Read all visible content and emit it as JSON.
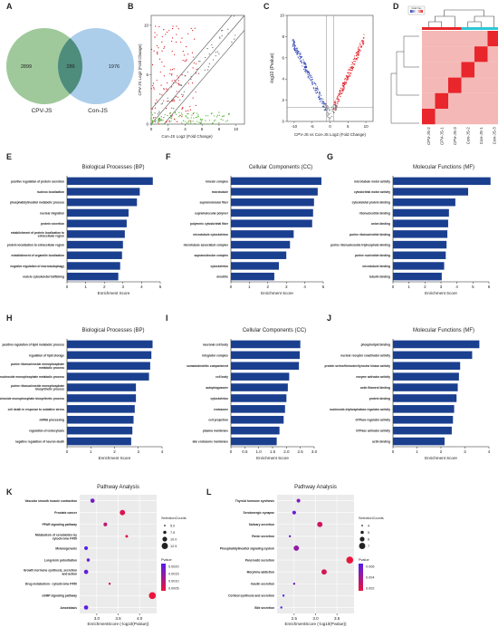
{
  "panel_letters": [
    "A",
    "B",
    "C",
    "D",
    "E",
    "F",
    "G",
    "H",
    "I",
    "J",
    "K",
    "L"
  ],
  "colors": {
    "bar": "#1b3f8f",
    "venn_left": "#8fc08a",
    "venn_right": "#9dc6e8",
    "venn_overlap": "#4e8c7b",
    "up": "#e0141e",
    "down": "#2a3fb0",
    "green_pts": "#4caf2a",
    "heat_red": "#e8262b",
    "heat_pink": "#f4b8b6",
    "group_red": "#e8262b",
    "group_cyan": "#2ec6d6"
  },
  "chart_data": [
    {
      "id": "A",
      "type": "venn",
      "sets": [
        {
          "name": "CPV-JS",
          "only": 2899
        },
        {
          "name": "Con-JS",
          "only": 1976
        }
      ],
      "overlap": 289
    },
    {
      "id": "B",
      "type": "scatter",
      "xlabel": "Con-JS Log2 (Fold Change)",
      "ylabel": "CPV-JS Log2 (Fold Change)",
      "xlim": [
        0,
        11
      ],
      "ylim": [
        0,
        11
      ],
      "xticks": [
        0,
        2,
        4,
        6,
        8,
        10
      ],
      "yticks": [
        0,
        5,
        10
      ]
    },
    {
      "id": "C",
      "type": "scatter",
      "subtype": "volcano",
      "xlabel": "CPV-JS vs Con-JS Log2 (Fold Change)",
      "ylabel": "-log10 (Pvalue)",
      "xlim": [
        -12,
        12
      ],
      "ylim": [
        0,
        10
      ],
      "xticks": [
        -10,
        -5,
        0,
        5,
        10
      ],
      "yticks": [
        0,
        2,
        4,
        6,
        8,
        10
      ]
    },
    {
      "id": "D",
      "type": "heatmap",
      "samples": [
        "CPV-JS-2",
        "CPV-JS-1",
        "CPV-JS-3",
        "Con-JS-2",
        "Con-JS-1",
        "Con-JS-3"
      ],
      "legend_title": "Color Key"
    },
    {
      "id": "E",
      "type": "bar",
      "orientation": "horizontal",
      "title": "Biological Processes (BP)",
      "xlabel": "Enrichment Score",
      "xlim": [
        0,
        5
      ],
      "xticks": [
        0,
        1,
        2,
        3,
        4,
        5
      ],
      "categories": [
        "positive regulation of protein secretion",
        "nucleus localization",
        "phosphatidylinositol metabolic process",
        "nuclear migration",
        "protein secretion",
        "establishment of protein localization to extracellular region",
        "protein localization to extracellular region",
        "establishment of organelle localization",
        "negative regulation of macroautophagy",
        "vesicle cytoskeletal trafficking"
      ],
      "values": [
        4.6,
        3.9,
        3.75,
        3.3,
        3.2,
        3.1,
        3.0,
        2.95,
        2.85,
        2.75
      ]
    },
    {
      "id": "F",
      "type": "bar",
      "orientation": "horizontal",
      "title": "Cellular Components (CC)",
      "xlabel": "Enrichment Score",
      "xlim": [
        0,
        5
      ],
      "xticks": [
        0,
        1,
        2,
        3,
        4,
        5
      ],
      "categories": [
        "kinesin complex",
        "microtubule",
        "supramolecular fiber",
        "supramolecular polymer",
        "polymeric cytoskeletal fiber",
        "microtubule cytoskeleton",
        "microtubule associated complex",
        "supramolecular complex",
        "cytoskeleton",
        "dendrite"
      ],
      "values": [
        4.9,
        4.7,
        4.5,
        4.45,
        4.4,
        3.4,
        3.2,
        3.0,
        2.6,
        2.35
      ]
    },
    {
      "id": "G",
      "type": "bar",
      "orientation": "horizontal",
      "title": "Molecular Functions (MF)",
      "xlabel": "Enrichment Score",
      "xlim": [
        0,
        6
      ],
      "xticks": [
        0,
        1,
        2,
        3,
        4,
        5,
        6
      ],
      "categories": [
        "microtubule motor activity",
        "cytoskeletal motor activity",
        "cytoskeletal protein binding",
        "ribonucleotide binding",
        "anion binding",
        "purine ribonucleotide binding",
        "purine ribonucleoside triphosphate binding",
        "purine nucleotide binding",
        "microtubule binding",
        "tubulin binding"
      ],
      "values": [
        6.1,
        4.7,
        3.9,
        3.5,
        3.45,
        3.4,
        3.35,
        3.3,
        3.2,
        3.05
      ]
    },
    {
      "id": "H",
      "type": "bar",
      "orientation": "horizontal",
      "title": "Biological Processes (BP)",
      "xlabel": "Enrichment Score",
      "xlim": [
        0,
        4
      ],
      "xticks": [
        0,
        1,
        2,
        3,
        4
      ],
      "categories": [
        "positive regulation of lipid metabolic process",
        "regulation of lipid storage",
        "purine ribonucleoside monophosphate metabolic process",
        "purine nucleoside monophosphate metabolic process",
        "purine ribonucleoside monophosphate biosynthetic process",
        "purine nucleoside monophosphate biosynthetic process",
        "cell death in response to oxidative stress",
        "mRNA processing",
        "regulation of endocytosis",
        "negative regulation of neuron death"
      ],
      "values": [
        3.6,
        3.55,
        3.5,
        3.45,
        2.9,
        2.9,
        2.85,
        2.8,
        2.75,
        2.7
      ]
    },
    {
      "id": "I",
      "type": "bar",
      "orientation": "horizontal",
      "title": "Cellular Components (CC)",
      "xlabel": "Enrichment Score",
      "xlim": [
        0,
        3
      ],
      "xticks": [
        0,
        0.5,
        1,
        1.5,
        2,
        2.5,
        3
      ],
      "xticklabels": [
        "0",
        "0.5",
        "1.0",
        "1.5",
        "2.0",
        "2.5",
        "3.0"
      ],
      "categories": [
        "neuronal cell body",
        "integrator complex",
        "somatodendritic compartment",
        "cell body",
        "autophagosome",
        "cytoskeleton",
        "endosome",
        "cell projection",
        "plasma membrane",
        "late endosome membrane"
      ],
      "values": [
        2.5,
        2.48,
        2.45,
        2.1,
        2.05,
        2.0,
        1.95,
        1.9,
        1.75,
        1.65
      ]
    },
    {
      "id": "J",
      "type": "bar",
      "orientation": "horizontal",
      "title": "Molecular Functions (MF)",
      "xlabel": "Enrichment Score",
      "xlim": [
        0,
        4
      ],
      "xticks": [
        0,
        1,
        2,
        3,
        4
      ],
      "categories": [
        "phospholipid binding",
        "nuclear receptor coactivator activity",
        "protein serine/threonine/tyrosine kinase activity",
        "enzyme activator activity",
        "actin filament binding",
        "protein binding",
        "nucleoside-triphosphatase regulator activity",
        "GTPase regulator activity",
        "GTPase activator activity",
        "actin binding"
      ],
      "values": [
        3.6,
        3.3,
        2.8,
        2.75,
        2.7,
        2.65,
        2.55,
        2.5,
        2.45,
        2.15
      ]
    },
    {
      "id": "K",
      "type": "scatter",
      "subtype": "bubble",
      "title": "Pathway Analysis",
      "xlabel": "EnrichmentScore (-log10(Pvalue))",
      "xlim": [
        2.6,
        4.4
      ],
      "xticks": [
        3.0,
        3.5,
        4.0
      ],
      "xticklabels": [
        "3.0",
        "3.5",
        "4.0"
      ],
      "categories": [
        "Vascular smooth muscle contraction",
        "Prostate cancer",
        "PPAR signaling pathway",
        "Metabolism of xenobiotics by cytochrome P450",
        "Melanogenesis",
        "Long-term potentiation",
        "Growth hormone synthesis, secretion and action",
        "Drug metabolism - cytochrome P450",
        "cGMP signaling pathway",
        "Amoebiasis"
      ],
      "points": [
        {
          "x": 2.9,
          "count": 9,
          "p": 0.0015
        },
        {
          "x": 3.6,
          "count": 11,
          "p": 0.0003
        },
        {
          "x": 3.2,
          "count": 8,
          "p": 0.0006
        },
        {
          "x": 3.7,
          "count": 6,
          "p": 0.0002
        },
        {
          "x": 2.75,
          "count": 8,
          "p": 0.0019
        },
        {
          "x": 2.8,
          "count": 7,
          "p": 0.0016
        },
        {
          "x": 2.75,
          "count": 9,
          "p": 0.0017
        },
        {
          "x": 3.3,
          "count": 5,
          "p": 0.0004
        },
        {
          "x": 4.3,
          "count": 14,
          "p": 0.0001
        },
        {
          "x": 2.75,
          "count": 9,
          "p": 0.0018
        }
      ],
      "size_legend": {
        "title": "SelectionCounts",
        "values": [
          "5.0",
          "7.5",
          "10.0",
          "12.5"
        ]
      },
      "color_legend": {
        "title": "Pvalue",
        "values": [
          "0.0020",
          "0.0015",
          "0.0010",
          "0.0005"
        ]
      }
    },
    {
      "id": "L",
      "type": "scatter",
      "subtype": "bubble",
      "title": "Pathway Analysis",
      "xlabel": "EnrichmentScore (-log10(Pvalue))",
      "xlim": [
        2.1,
        3.9
      ],
      "xticks": [
        2.5,
        3.0,
        3.5
      ],
      "xticklabels": [
        "2.5",
        "3.0",
        "3.5"
      ],
      "categories": [
        "Thyroid hormone synthesis",
        "Serotonergic synapse",
        "Salivary secretion",
        "Renin secretion",
        "Phosphatidylinositol signaling system",
        "Pancreatic secretion",
        "Morphine addiction",
        "Insulin secretion",
        "Cortisol synthesis and secretion",
        "Bile secretion"
      ],
      "points": [
        {
          "x": 2.6,
          "count": 5,
          "p": 0.006
        },
        {
          "x": 2.5,
          "count": 5,
          "p": 0.007
        },
        {
          "x": 3.1,
          "count": 6,
          "p": 0.002
        },
        {
          "x": 2.4,
          "count": 4,
          "p": 0.007
        },
        {
          "x": 2.55,
          "count": 6,
          "p": 0.005
        },
        {
          "x": 3.8,
          "count": 7,
          "p": 0.0005
        },
        {
          "x": 3.2,
          "count": 6,
          "p": 0.0015
        },
        {
          "x": 2.5,
          "count": 4,
          "p": 0.006
        },
        {
          "x": 2.25,
          "count": 4,
          "p": 0.008
        },
        {
          "x": 2.2,
          "count": 4,
          "p": 0.008
        }
      ],
      "size_legend": {
        "title": "SelectionCounts",
        "values": [
          "4",
          "5",
          "6",
          "7"
        ]
      },
      "color_legend": {
        "title": "Pvalue",
        "values": [
          "0.006",
          "0.004",
          "0.002"
        ]
      }
    }
  ]
}
